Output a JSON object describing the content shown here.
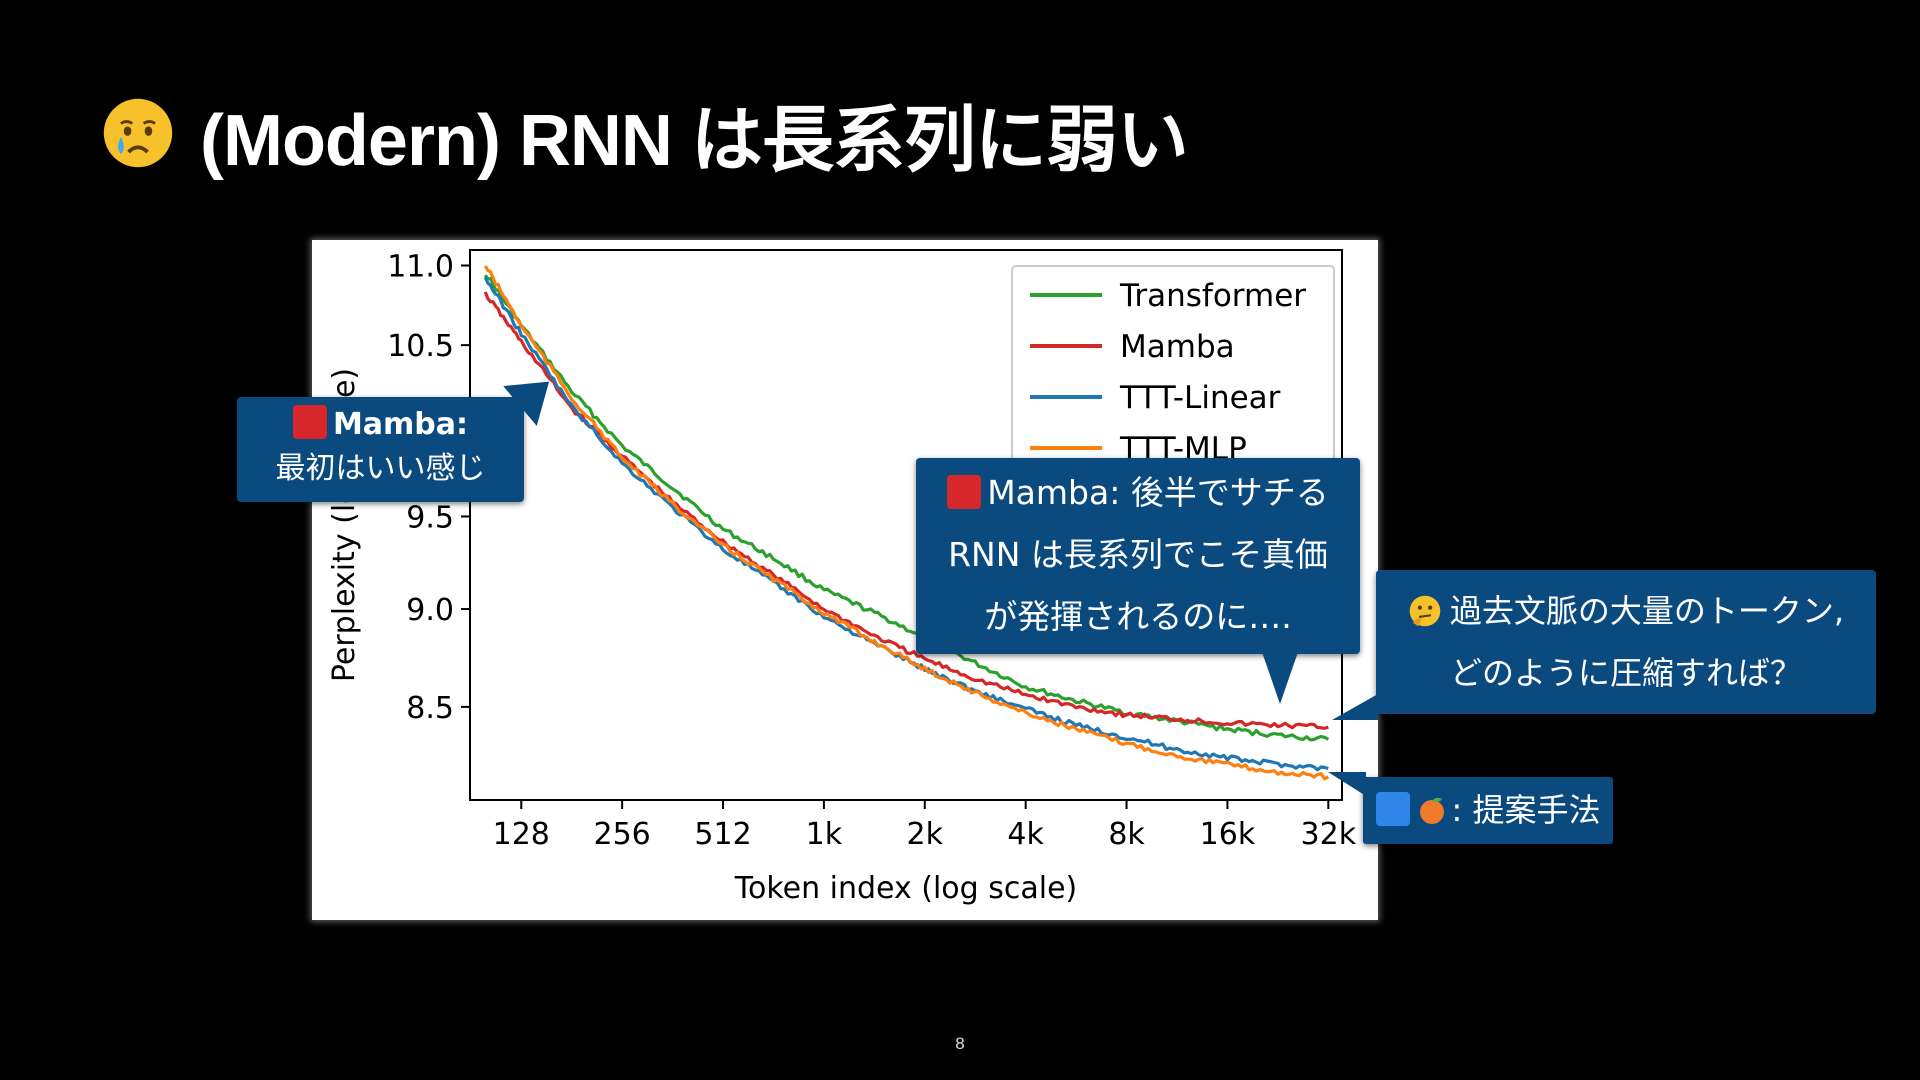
{
  "slide": {
    "title": "(Modern) RNN は長系列に弱い",
    "title_icon": "crying-face-emoji",
    "page_number": "8"
  },
  "callouts": {
    "mamba_start": {
      "line1": "Mamba:",
      "line2": "最初はいい感じ",
      "icon": "red-square"
    },
    "mamba_late": {
      "line1": "Mamba: 後半でサチる",
      "line2": "RNN は長系列でこそ真価",
      "line3": "が発揮されるのに…."
    },
    "question": {
      "line1": "過去文脈の大量のトークン,",
      "line2": "どのように圧縮すれば？",
      "icon": "thinking-face"
    },
    "proposed": {
      "label": ": 提案手法",
      "icons": [
        "blue-square",
        "peach"
      ]
    }
  },
  "colors": {
    "background": "#000000",
    "callout_bg": "#0b4a7e",
    "transformer": "#2ca02c",
    "mamba": "#d62728",
    "ttt_linear": "#1f77b4",
    "ttt_mlp": "#ff7f0e"
  },
  "chart_data": {
    "type": "line",
    "xlabel": "Token index (log scale)",
    "ylabel": "Perplexity (log scale)",
    "x_scale": "log2",
    "x_ticks": [
      128,
      256,
      512,
      1024,
      2048,
      4096,
      8192,
      16384,
      32768
    ],
    "x_tick_labels": [
      "128",
      "256",
      "512",
      "1k",
      "2k",
      "4k",
      "8k",
      "16k",
      "32k"
    ],
    "y_ticks": [
      8.5,
      9.0,
      9.5,
      10.0,
      10.5,
      11.0
    ],
    "y_tick_labels": [
      "8.5",
      "9.0",
      "9.5",
      "10.0",
      "10.5",
      "11.0"
    ],
    "xlim": [
      90,
      36000
    ],
    "ylim": [
      8.05,
      11.1
    ],
    "legend_position": "top-right",
    "grid": false,
    "x": [
      100,
      128,
      181,
      256,
      362,
      512,
      724,
      1024,
      1448,
      2048,
      2896,
      4096,
      5793,
      8192,
      11585,
      16384,
      23170,
      32768
    ],
    "series": [
      {
        "name": "Transformer",
        "color": "#2ca02c",
        "values": [
          10.95,
          10.62,
          10.22,
          9.9,
          9.66,
          9.43,
          9.27,
          9.1,
          8.98,
          8.85,
          8.72,
          8.6,
          8.53,
          8.47,
          8.43,
          8.39,
          8.36,
          8.34
        ]
      },
      {
        "name": "Mamba",
        "color": "#d62728",
        "values": [
          10.82,
          10.52,
          10.12,
          9.84,
          9.58,
          9.36,
          9.18,
          9.0,
          8.86,
          8.74,
          8.64,
          8.56,
          8.5,
          8.46,
          8.44,
          8.42,
          8.41,
          8.4
        ]
      },
      {
        "name": "TTT-Linear",
        "color": "#1f77b4",
        "values": [
          10.92,
          10.57,
          10.13,
          9.8,
          9.55,
          9.32,
          9.14,
          8.96,
          8.82,
          8.69,
          8.58,
          8.49,
          8.41,
          8.35,
          8.29,
          8.25,
          8.22,
          8.2
        ]
      },
      {
        "name": "TTT-MLP",
        "color": "#ff7f0e",
        "values": [
          11.0,
          10.62,
          10.18,
          9.83,
          9.57,
          9.34,
          9.16,
          8.98,
          8.83,
          8.69,
          8.57,
          8.47,
          8.39,
          8.32,
          8.26,
          8.22,
          8.18,
          8.16
        ]
      }
    ]
  }
}
